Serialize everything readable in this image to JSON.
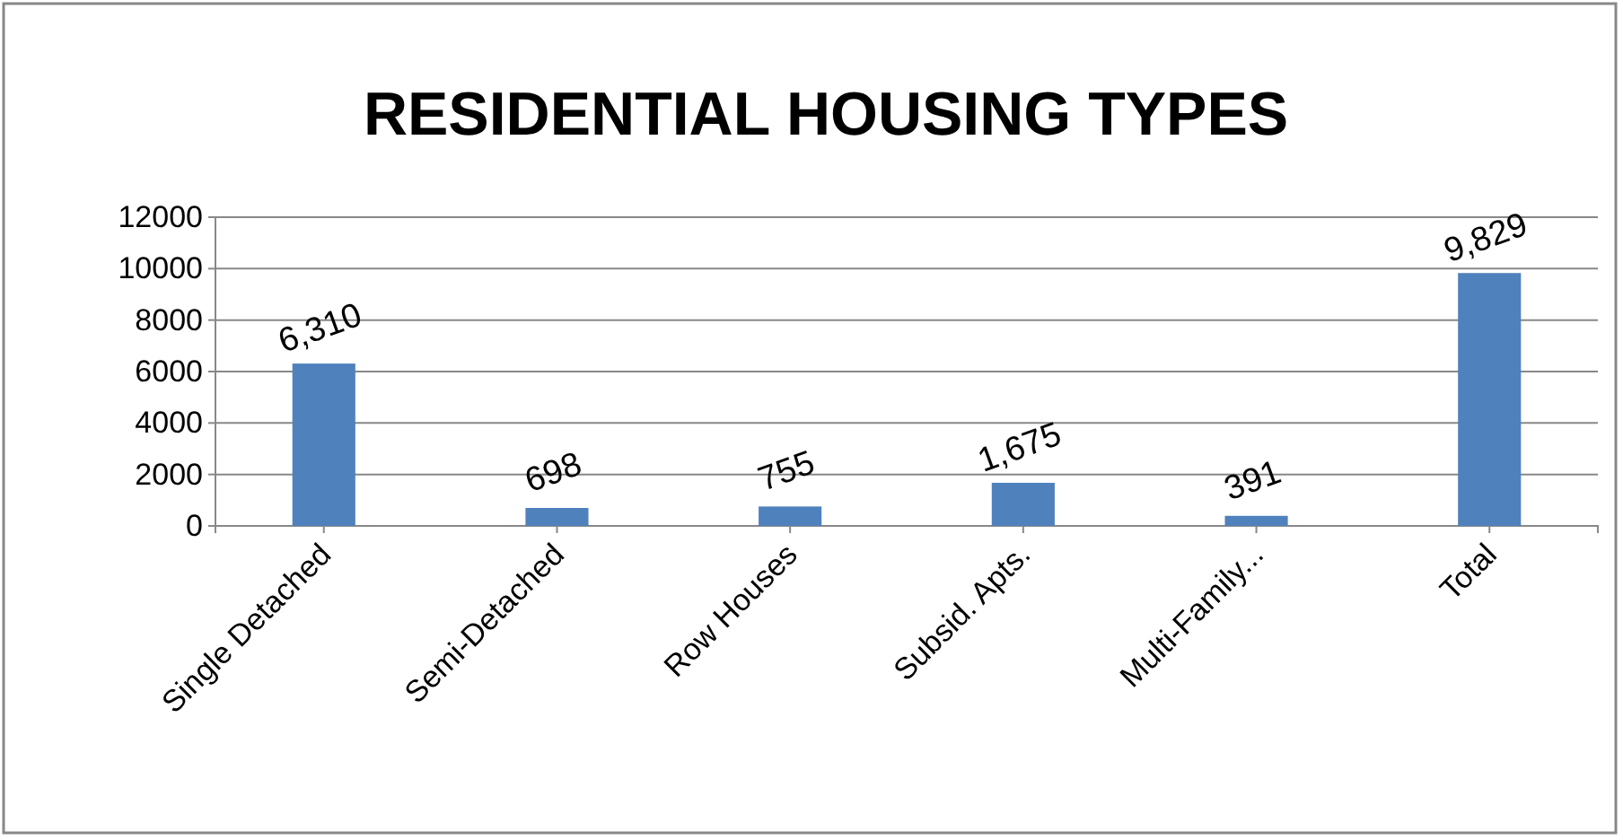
{
  "chart_data": {
    "type": "bar",
    "title": "RESIDENTIAL HOUSING TYPES",
    "categories": [
      "Single Detached",
      "Semi-Detached",
      "Row Houses",
      "Subsid. Apts.",
      "Multi-Family...",
      "Total"
    ],
    "values": [
      6310,
      698,
      755,
      1675,
      391,
      9829
    ],
    "value_labels": [
      "6,310",
      "698",
      "755",
      "1,675",
      "391",
      "9,829"
    ],
    "color": "#4f81bd",
    "ylim": [
      0,
      12000
    ],
    "yticks": [
      0,
      2000,
      4000,
      6000,
      8000,
      10000,
      12000
    ],
    "grid": "y"
  }
}
